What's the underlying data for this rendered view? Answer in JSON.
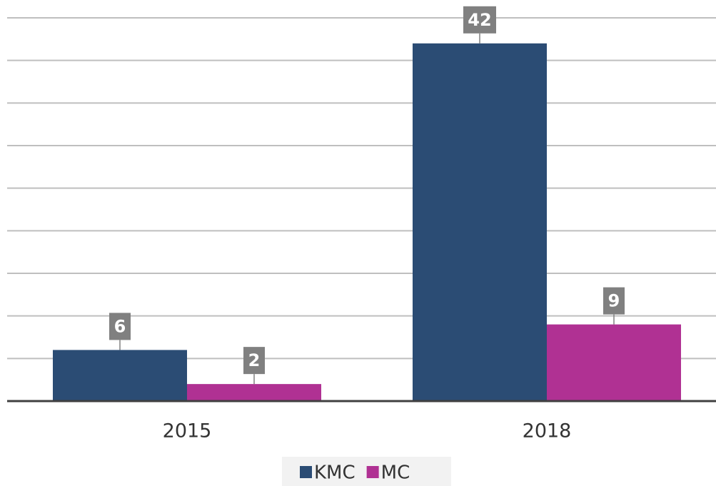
{
  "chart_data": {
    "type": "bar",
    "categories": [
      "2015",
      "2018"
    ],
    "series": [
      {
        "name": "KMC",
        "color": "#2b4c74",
        "values": [
          6,
          42
        ]
      },
      {
        "name": "MC",
        "color": "#b03193",
        "values": [
          2,
          9
        ]
      }
    ],
    "ylim": [
      0,
      45
    ],
    "yticks": [
      0,
      5,
      10,
      15,
      20,
      25,
      30,
      35,
      40,
      45
    ],
    "grid": true,
    "legend": "bottom"
  }
}
